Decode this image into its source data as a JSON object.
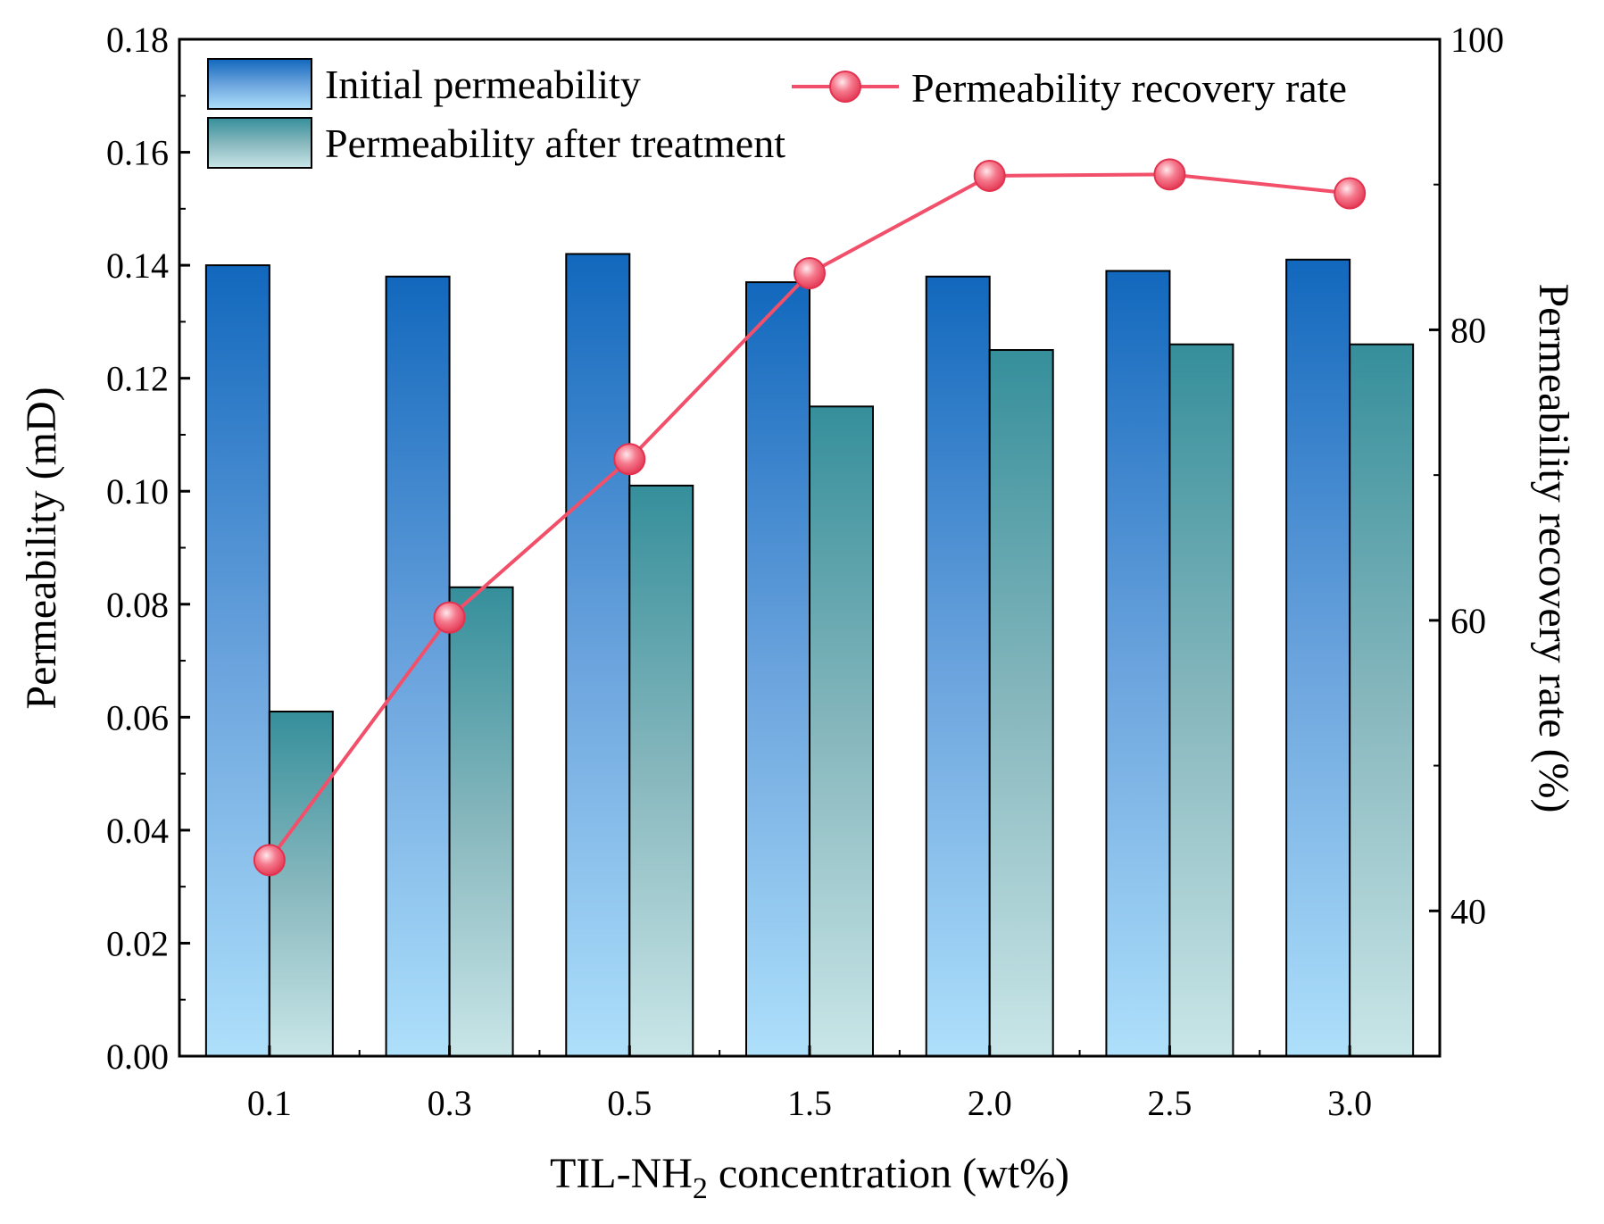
{
  "chart_data": {
    "type": "bar",
    "xlabel": "TIL-NH2 concentration (wt%)",
    "xlabel_main": "TIL-NH",
    "xlabel_sub": "2",
    "xlabel_rest": " concentration (wt%)",
    "ylabel": "Permeability (mD)",
    "y2label": "Permeability recovery rate (%)",
    "categories": [
      "0.1",
      "0.3",
      "0.5",
      "1.5",
      "2.0",
      "2.5",
      "3.0"
    ],
    "ylim": [
      0,
      0.18
    ],
    "y2lim": [
      30,
      100
    ],
    "yticks": [
      "0.00",
      "0.02",
      "0.04",
      "0.06",
      "0.08",
      "0.10",
      "0.12",
      "0.14",
      "0.16",
      "0.18"
    ],
    "y2ticks": [
      40,
      60,
      80,
      100
    ],
    "series": [
      {
        "name": "Initial permeability",
        "type": "bar",
        "axis": "left",
        "color": "#1a6fbf",
        "values": [
          0.14,
          0.138,
          0.142,
          0.137,
          0.138,
          0.139,
          0.141
        ]
      },
      {
        "name": "Permeability after treatment",
        "type": "bar",
        "axis": "left",
        "color": "#3a8f9a",
        "values": [
          0.061,
          0.083,
          0.101,
          0.115,
          0.125,
          0.126,
          0.126
        ]
      },
      {
        "name": "Permeability recovery rate",
        "type": "line",
        "axis": "right",
        "color": "#f2506a",
        "values": [
          43.5,
          60.2,
          71.1,
          83.9,
          90.6,
          90.7,
          89.4
        ]
      }
    ],
    "legend": "top"
  }
}
